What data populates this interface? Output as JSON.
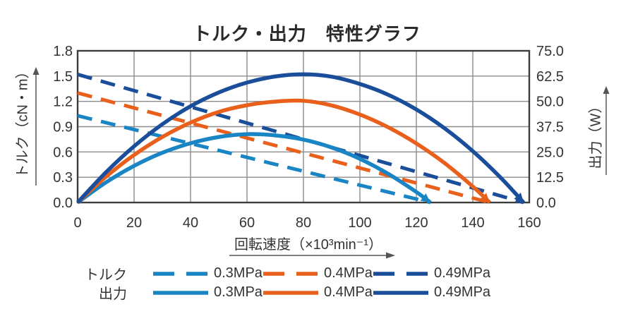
{
  "chart_data": {
    "type": "line",
    "title": "トルク・出力　特性グラフ",
    "x_axis": {
      "label": "回転速度（×10³min⁻¹）",
      "ticks": [
        0,
        20,
        40,
        60,
        80,
        100,
        120,
        140,
        160
      ],
      "range": [
        0,
        160
      ],
      "grid": true
    },
    "y_left": {
      "label": "トルク（cN・m）",
      "ticks": [
        "1.8",
        "1.5",
        "1.2",
        "0.9",
        "0.6",
        "0.3",
        "0.0"
      ],
      "range": [
        0,
        1.8
      ],
      "grid": true
    },
    "y_right": {
      "label": "出力（W）",
      "ticks": [
        "75.0",
        "62.5",
        "50.0",
        "37.5",
        "25.0",
        "12.5",
        "0.0"
      ],
      "range": [
        0,
        75
      ]
    },
    "colors": {
      "light_blue": "#1a85c4",
      "orange": "#e8601c",
      "dark_blue": "#1a4e9a",
      "grid": "#8c8c8c",
      "border": "#3c3c3c",
      "text": "#333333"
    },
    "series": [
      {
        "name": "torque-0.3MPa",
        "legend": "0.3MPa",
        "group": "トルク",
        "axis": "left",
        "style": "dashed",
        "color": "#1a85c4",
        "arrow_end": false,
        "points": [
          [
            0,
            1.03
          ],
          [
            125,
            0
          ]
        ]
      },
      {
        "name": "torque-0.4MPa",
        "legend": "0.4MPa",
        "group": "トルク",
        "axis": "left",
        "style": "dashed",
        "color": "#e8601c",
        "arrow_end": false,
        "points": [
          [
            0,
            1.3
          ],
          [
            146,
            0
          ]
        ]
      },
      {
        "name": "torque-0.49MPa",
        "legend": "0.49MPa",
        "group": "トルク",
        "axis": "left",
        "style": "dashed",
        "color": "#1a4e9a",
        "arrow_end": false,
        "points": [
          [
            0,
            1.52
          ],
          [
            158,
            0
          ]
        ]
      },
      {
        "name": "output-0.3MPa",
        "legend": "0.3MPa",
        "group": "出力",
        "axis": "right",
        "style": "solid",
        "color": "#1a85c4",
        "arrow_end": true,
        "points": [
          [
            0,
            0
          ],
          [
            10,
            9.9
          ],
          [
            20,
            18.1
          ],
          [
            30,
            24.6
          ],
          [
            40,
            29.3
          ],
          [
            50,
            32.4
          ],
          [
            60,
            33.8
          ],
          [
            70,
            33.2
          ],
          [
            80,
            31.1
          ],
          [
            90,
            27.2
          ],
          [
            100,
            21.6
          ],
          [
            110,
            14.2
          ],
          [
            120,
            5.2
          ],
          [
            125,
            0
          ]
        ]
      },
      {
        "name": "output-0.4MPa",
        "legend": "0.4MPa",
        "group": "出力",
        "axis": "right",
        "style": "solid",
        "color": "#e8601c",
        "arrow_end": true,
        "points": [
          [
            0,
            0
          ],
          [
            10,
            12.7
          ],
          [
            20,
            23.5
          ],
          [
            30,
            32.4
          ],
          [
            40,
            39.5
          ],
          [
            50,
            44.8
          ],
          [
            60,
            48.1
          ],
          [
            70,
            49.9
          ],
          [
            80,
            50.3
          ],
          [
            90,
            48.0
          ],
          [
            100,
            43.5
          ],
          [
            110,
            37.2
          ],
          [
            120,
            29.2
          ],
          [
            130,
            19.5
          ],
          [
            140,
            7.9
          ],
          [
            146,
            0
          ]
        ]
      },
      {
        "name": "output-0.49MPa",
        "legend": "0.49MPa",
        "group": "出力",
        "axis": "right",
        "style": "solid",
        "color": "#1a4e9a",
        "arrow_end": true,
        "points": [
          [
            0,
            0
          ],
          [
            10,
            14.9
          ],
          [
            20,
            27.8
          ],
          [
            30,
            38.7
          ],
          [
            40,
            47.6
          ],
          [
            50,
            54.4
          ],
          [
            60,
            59.3
          ],
          [
            70,
            62.3
          ],
          [
            80,
            63.4
          ],
          [
            90,
            62.2
          ],
          [
            100,
            58.6
          ],
          [
            110,
            53.3
          ],
          [
            120,
            46.0
          ],
          [
            130,
            36.7
          ],
          [
            140,
            25.4
          ],
          [
            150,
            12.1
          ],
          [
            158,
            0
          ]
        ]
      }
    ],
    "legend": {
      "position": "bottom",
      "rows": [
        {
          "label": "トルク",
          "style": "dashed"
        },
        {
          "label": "出力",
          "style": "solid"
        }
      ],
      "pressures": [
        {
          "label": "0.3MPa",
          "color": "#1a85c4"
        },
        {
          "label": "0.4MPa",
          "color": "#e8601c"
        },
        {
          "label": "0.49MPa",
          "color": "#1a4e9a"
        }
      ]
    }
  }
}
